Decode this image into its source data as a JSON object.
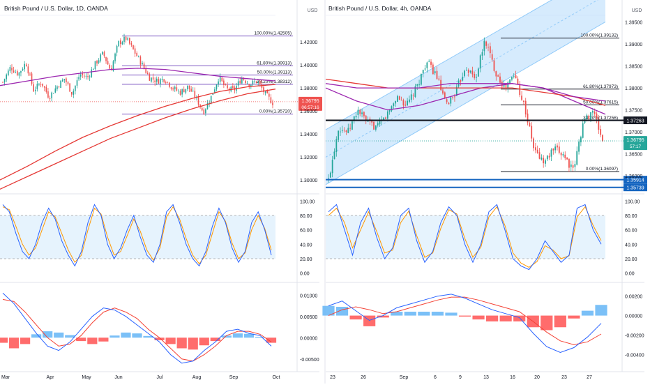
{
  "colors": {
    "up": "#26a69a",
    "down": "#ef5350",
    "ma_purple": "#9c27b0",
    "ma_red": "#e53935",
    "fib_line": "#7e57c2",
    "band_fill": "#bbdefb",
    "stoch_k": "#2962ff",
    "stoch_d": "#ff9800",
    "macd_line": "#2962ff",
    "signal_line": "#f44336",
    "hist_pos": "#64b5f6",
    "hist_neg": "#ff5252",
    "channel": "#90caf9",
    "price_tag": "#ef5350",
    "price_tag_right": "#26a69a",
    "level_line": "#1565c0"
  },
  "left": {
    "title": "British Pound / U.S. Dollar, 1D, OANDA",
    "axis_unit": "USD",
    "price_ticks": [
      "1.42000",
      "1.40000",
      "1.38000",
      "1.36000",
      "1.34000",
      "1.32000",
      "1.30000"
    ],
    "price_tag": {
      "price": "1.36795",
      "countdown": "06:57:16"
    },
    "fib_labels": [
      {
        "text": "100.00%(1.42505)",
        "value": 1.42505
      },
      {
        "text": "61.80%(1.39913)",
        "value": 1.39913
      },
      {
        "text": "50.00%(1.39113)",
        "value": 1.39113
      },
      {
        "text": "38.20%(1.38312)",
        "value": 1.38312
      },
      {
        "text": "0.00%(1.35720)",
        "value": 1.3572
      }
    ],
    "stoch_ticks": [
      "100.00",
      "80.00",
      "60.00",
      "40.00",
      "20.00",
      "0.00"
    ],
    "macd_ticks": [
      "0.01000",
      "0.00500",
      "0.00000",
      "-0.00500"
    ],
    "x_labels": [
      "Mar",
      "Apr",
      "May",
      "Jun",
      "Jul",
      "Aug",
      "Sep",
      "Oct"
    ]
  },
  "right": {
    "title": "British Pound / U.S. Dollar, 4h, OANDA",
    "axis_unit": "USD",
    "price_ticks": [
      "1.39500",
      "1.39000",
      "1.38500",
      "1.38000",
      "1.37500",
      "1.37000",
      "1.36500",
      "1.36000"
    ],
    "price_tag": {
      "price": "1.36795",
      "countdown": "57:17"
    },
    "level_tags": [
      "1.37263",
      "1.35914",
      "1.35739"
    ],
    "fib_labels": [
      {
        "text": "100.00%(1.39132)",
        "value": 1.39132
      },
      {
        "text": "61.80%(1.37973)",
        "value": 1.37973
      },
      {
        "text": "50.00%(1.37615)",
        "value": 1.37615
      },
      {
        "text": "38.20%(1.37256)",
        "value": 1.37256
      },
      {
        "text": "0.00%(1.36097)",
        "value": 1.36097
      }
    ],
    "stoch_ticks": [
      "100.00",
      "80.00",
      "60.00",
      "40.00",
      "20.00",
      "0.00"
    ],
    "macd_ticks": [
      "0.00200",
      "0.00000",
      "-0.00200",
      "-0.00400"
    ],
    "x_labels": [
      "23",
      "26",
      "Sep",
      "6",
      "9",
      "13",
      "16",
      "20",
      "23",
      "27"
    ]
  },
  "chart_data": [
    {
      "type": "candlestick",
      "title": "British Pound / U.S. Dollar, 1D, OANDA",
      "ylim": [
        1.294,
        1.443
      ],
      "x": [
        "Mar",
        "Apr",
        "May",
        "Jun",
        "Jul",
        "Aug",
        "Sep",
        "Oct"
      ],
      "close_path": [
        1.385,
        1.398,
        1.392,
        1.402,
        1.378,
        1.385,
        1.372,
        1.381,
        1.388,
        1.375,
        1.392,
        1.389,
        1.401,
        1.41,
        1.395,
        1.419,
        1.423,
        1.412,
        1.401,
        1.389,
        1.386,
        1.388,
        1.38,
        1.376,
        1.381,
        1.372,
        1.359,
        1.372,
        1.389,
        1.379,
        1.378,
        1.389,
        1.383,
        1.386,
        1.375,
        1.367
      ],
      "last_price": 1.36795,
      "fib_levels": [
        1.42505,
        1.39913,
        1.39113,
        1.38312,
        1.3572
      ],
      "moving_averages": [
        {
          "color": "purple",
          "values": [
            1.382,
            1.386,
            1.39,
            1.393,
            1.396,
            1.397,
            1.396,
            1.393,
            1.39,
            1.388,
            1.386
          ]
        },
        {
          "color": "red",
          "values": [
            1.3,
            1.312,
            1.325,
            1.337,
            1.347,
            1.356,
            1.364,
            1.371,
            1.377,
            1.381,
            1.383
          ]
        },
        {
          "color": "red",
          "values": [
            1.292,
            1.303,
            1.314,
            1.325,
            1.336,
            1.345,
            1.354,
            1.362,
            1.369,
            1.375,
            1.379
          ]
        }
      ],
      "stochastic": {
        "ylim": [
          -8,
          108
        ],
        "bands": [
          80,
          20
        ],
        "k": [
          95,
          85,
          55,
          30,
          20,
          40,
          70,
          90,
          75,
          45,
          25,
          10,
          30,
          70,
          95,
          80,
          40,
          20,
          35,
          60,
          80,
          50,
          25,
          15,
          40,
          85,
          95,
          70,
          40,
          20,
          10,
          30,
          65,
          90,
          70,
          35,
          15,
          30,
          70,
          85,
          60,
          25
        ],
        "d": [
          92,
          88,
          65,
          40,
          25,
          35,
          60,
          85,
          78,
          55,
          32,
          15,
          25,
          60,
          90,
          82,
          50,
          25,
          30,
          52,
          75,
          58,
          32,
          18,
          35,
          78,
          92,
          75,
          48,
          25,
          13,
          25,
          55,
          85,
          72,
          42,
          20,
          28,
          60,
          80,
          62,
          32
        ]
      },
      "macd": {
        "ylim": [
          -0.0075,
          0.0125
        ],
        "macd": [
          0.0105,
          0.008,
          0.0045,
          0.001,
          -0.002,
          -0.003,
          -0.001,
          0.002,
          0.005,
          0.007,
          0.0065,
          0.005,
          0.003,
          0.001,
          -0.001,
          -0.004,
          -0.006,
          -0.0055,
          -0.003,
          -0.001,
          0.0015,
          0.002,
          0.001,
          0.0005,
          -0.002
        ],
        "signal": [
          0.009,
          0.0085,
          0.006,
          0.003,
          0.0,
          -0.002,
          -0.0015,
          0.0005,
          0.0035,
          0.006,
          0.007,
          0.006,
          0.0045,
          0.002,
          0.0,
          -0.0025,
          -0.005,
          -0.0055,
          -0.004,
          -0.002,
          0.0005,
          0.0015,
          0.0015,
          0.0008,
          -0.001
        ],
        "hist": [
          -0.0012,
          -0.0025,
          -0.0015,
          0.0008,
          0.0015,
          0.0012,
          0.0006,
          -0.0008,
          -0.0015,
          -0.0009,
          0.0005,
          0.0012,
          0.001,
          0.0004,
          -0.0006,
          -0.0015,
          -0.0025,
          -0.0028,
          -0.0018,
          -0.0008,
          0.0005,
          0.001,
          0.0009,
          0.0002,
          -0.0012
        ]
      }
    },
    {
      "type": "candlestick",
      "title": "British Pound / U.S. Dollar, 4h, OANDA",
      "ylim": [
        1.3575,
        1.3965
      ],
      "x": [
        "23",
        "26",
        "Sep",
        "6",
        "9",
        "13",
        "16",
        "20",
        "23",
        "27"
      ],
      "close_path": [
        1.359,
        1.371,
        1.37,
        1.375,
        1.372,
        1.371,
        1.374,
        1.378,
        1.376,
        1.38,
        1.386,
        1.383,
        1.376,
        1.379,
        1.385,
        1.382,
        1.391,
        1.384,
        1.38,
        1.383,
        1.376,
        1.366,
        1.363,
        1.366,
        1.365,
        1.361,
        1.372,
        1.375,
        1.368
      ],
      "last_price": 1.36795,
      "fib_levels": [
        1.39132,
        1.37973,
        1.37615,
        1.37256,
        1.36097
      ],
      "horizontal_levels": [
        1.37263,
        1.35914,
        1.35739
      ],
      "channel": {
        "lower": [
          1.358,
          1.395
        ],
        "upper": [
          1.3705,
          1.407
        ]
      },
      "moving_averages": [
        {
          "color": "purple",
          "values": [
            1.38,
            1.377,
            1.375,
            1.376,
            1.378,
            1.38,
            1.381,
            1.38,
            1.377,
            1.374
          ]
        },
        {
          "color": "red",
          "values": [
            1.382,
            1.381,
            1.38,
            1.38,
            1.38,
            1.38,
            1.38,
            1.379,
            1.378,
            1.376
          ]
        },
        {
          "color": "purple",
          "values": [
            1.381,
            1.38,
            1.38,
            1.38,
            1.381,
            1.381,
            1.381,
            1.38,
            1.378,
            1.377
          ]
        }
      ],
      "stochastic": {
        "ylim": [
          -8,
          108
        ],
        "bands": [
          80,
          20
        ],
        "k": [
          85,
          95,
          60,
          25,
          70,
          90,
          50,
          20,
          35,
          80,
          90,
          45,
          15,
          30,
          70,
          92,
          80,
          40,
          15,
          40,
          85,
          95,
          60,
          20,
          10,
          5,
          20,
          45,
          30,
          15,
          25,
          90,
          95,
          60,
          40
        ],
        "d": [
          80,
          90,
          70,
          35,
          60,
          85,
          58,
          28,
          32,
          70,
          86,
          52,
          22,
          28,
          62,
          88,
          82,
          48,
          22,
          36,
          78,
          92,
          66,
          28,
          14,
          8,
          16,
          38,
          32,
          20,
          24,
          78,
          92,
          66,
          45
        ]
      },
      "macd": {
        "ylim": [
          -0.0052,
          0.0032
        ],
        "macd": [
          0.001,
          0.0015,
          0.0005,
          -0.0005,
          0.0,
          0.0008,
          0.0012,
          0.0016,
          0.002,
          0.0022,
          0.0018,
          0.0012,
          0.0006,
          0.0002,
          -0.0002,
          -0.0018,
          -0.0032,
          -0.0038,
          -0.0033,
          -0.0022,
          -0.0008
        ],
        "signal": [
          0.0,
          0.0006,
          0.0009,
          0.0006,
          0.0002,
          0.0004,
          0.0008,
          0.0012,
          0.0016,
          0.0019,
          0.0019,
          0.0016,
          0.0012,
          0.0008,
          0.0004,
          -0.0006,
          -0.0017,
          -0.0026,
          -0.003,
          -0.0027,
          -0.0019
        ],
        "hist": [
          0.001,
          0.0009,
          -0.0004,
          -0.0011,
          -0.0002,
          0.0004,
          0.0004,
          0.0004,
          0.0004,
          0.0003,
          -0.0001,
          -0.0004,
          -0.0006,
          -0.0006,
          -0.0006,
          -0.0012,
          -0.0015,
          -0.0012,
          -0.0003,
          0.0005,
          0.0011
        ]
      }
    }
  ]
}
